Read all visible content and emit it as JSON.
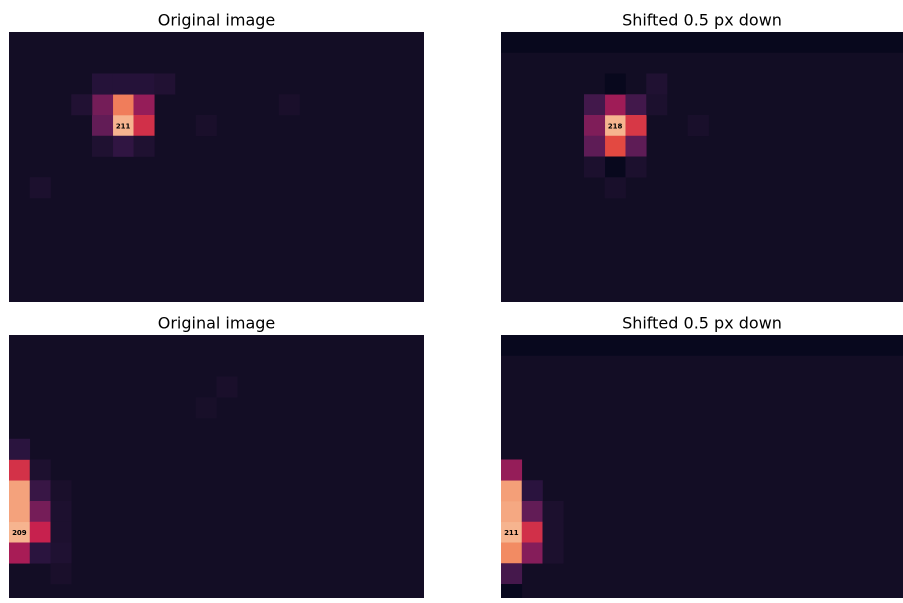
{
  "panels": [
    {
      "title": "Original image",
      "background": 15,
      "cells": [
        [
          4,
          5,
          211
        ],
        [
          3,
          5,
          185
        ],
        [
          3,
          4,
          90
        ],
        [
          3,
          6,
          110
        ],
        [
          4,
          4,
          80
        ],
        [
          4,
          6,
          150
        ],
        [
          2,
          4,
          35
        ],
        [
          2,
          5,
          35
        ],
        [
          2,
          6,
          35
        ],
        [
          2,
          7,
          30
        ],
        [
          5,
          5,
          45
        ],
        [
          5,
          4,
          28
        ],
        [
          5,
          6,
          28
        ],
        [
          3,
          3,
          30
        ],
        [
          7,
          1,
          25
        ],
        [
          3,
          13,
          22
        ],
        [
          4,
          9,
          22
        ]
      ]
    },
    {
      "title": "Shifted 0.5 px down",
      "background": 15,
      "top_row": 5,
      "cells": [
        [
          4,
          5,
          218
        ],
        [
          3,
          5,
          120
        ],
        [
          5,
          5,
          170
        ],
        [
          3,
          4,
          60
        ],
        [
          3,
          6,
          60
        ],
        [
          4,
          4,
          100
        ],
        [
          4,
          6,
          160
        ],
        [
          5,
          4,
          80
        ],
        [
          5,
          6,
          80
        ],
        [
          2,
          5,
          5
        ],
        [
          6,
          5,
          5
        ],
        [
          2,
          7,
          30
        ],
        [
          3,
          7,
          25
        ],
        [
          6,
          4,
          25
        ],
        [
          6,
          6,
          25
        ],
        [
          7,
          5,
          22
        ],
        [
          4,
          9,
          22
        ]
      ]
    },
    {
      "title": "Original image",
      "background": 15,
      "cells": [
        [
          9,
          0,
          209
        ],
        [
          8,
          0,
          200
        ],
        [
          7,
          0,
          200
        ],
        [
          6,
          0,
          150
        ],
        [
          10,
          0,
          120
        ],
        [
          5,
          0,
          40
        ],
        [
          6,
          1,
          25
        ],
        [
          7,
          1,
          50
        ],
        [
          8,
          1,
          90
        ],
        [
          9,
          1,
          140
        ],
        [
          10,
          1,
          40
        ],
        [
          7,
          2,
          22
        ],
        [
          8,
          2,
          25
        ],
        [
          9,
          2,
          25
        ],
        [
          10,
          2,
          28
        ],
        [
          11,
          2,
          22
        ],
        [
          2,
          10,
          22
        ],
        [
          3,
          9,
          20
        ]
      ]
    },
    {
      "title": "Shifted 0.5 px down",
      "background": 15,
      "top_row": 5,
      "cells": [
        [
          9,
          0,
          211
        ],
        [
          8,
          0,
          205
        ],
        [
          7,
          0,
          200
        ],
        [
          6,
          0,
          110
        ],
        [
          10,
          0,
          190
        ],
        [
          11,
          0,
          60
        ],
        [
          7,
          1,
          40
        ],
        [
          8,
          1,
          80
        ],
        [
          9,
          1,
          150
        ],
        [
          10,
          1,
          100
        ],
        [
          8,
          2,
          25
        ],
        [
          9,
          2,
          25
        ],
        [
          10,
          2,
          25
        ],
        [
          12,
          0,
          5
        ]
      ]
    }
  ]
}
